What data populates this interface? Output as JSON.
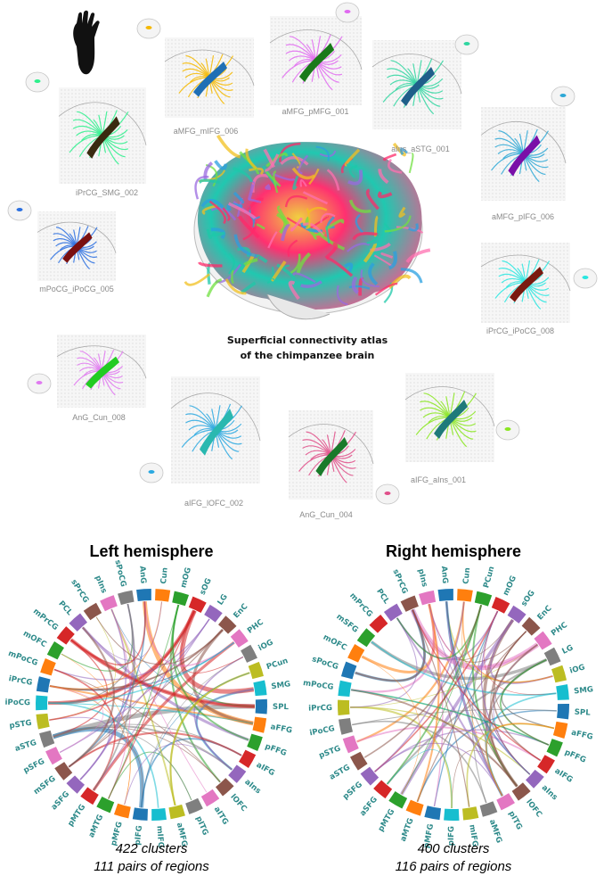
{
  "atlas_title": [
    "Superficial connectivity atlas",
    "of the chimpanzee brain"
  ],
  "bundles": [
    {
      "name": "aMFG_mIFG_006",
      "colors": [
        "#f5b800",
        "#1f6fb5"
      ]
    },
    {
      "name": "aMFG_pMFG_001",
      "colors": [
        "#e06af0",
        "#1a7a1a"
      ]
    },
    {
      "name": "aIns_aSTG_001",
      "colors": [
        "#2fd6a0",
        "#1f5f8a"
      ]
    },
    {
      "name": "iPrCG_SMG_002",
      "colors": [
        "#2df08c",
        "#3a2a10"
      ]
    },
    {
      "name": "aMFG_pIFG_006",
      "colors": [
        "#2ea8d6",
        "#7a0fa8"
      ]
    },
    {
      "name": "mPoCG_iPoCG_005",
      "colors": [
        "#2a6fe0",
        "#7a1010"
      ]
    },
    {
      "name": "iPrCG_iPoCG_008",
      "colors": [
        "#29e6e0",
        "#7a1a10"
      ]
    },
    {
      "name": "AnG_Cun_008",
      "colors": [
        "#e07af0",
        "#22cc22"
      ]
    },
    {
      "name": "aIFG_lOFC_002",
      "colors": [
        "#2aa8e0",
        "#2ab8b0"
      ]
    },
    {
      "name": "AnG_Cun_004",
      "colors": [
        "#e0508a",
        "#1a7a2a"
      ]
    },
    {
      "name": "aIFG_aIns_001",
      "colors": [
        "#8ae620",
        "#1f7a7a"
      ]
    }
  ],
  "hemispheres": [
    {
      "title": "Left hemisphere",
      "clusters": "422 clusters",
      "pairs": "111 pairs of regions",
      "regions": [
        "AnG",
        "Cun",
        "mOG",
        "sOG",
        "LG",
        "EnC",
        "PHC",
        "iOG",
        "PCun",
        "SMG",
        "SPL",
        "aFFG",
        "pFFG",
        "aIFG",
        "aIns",
        "lOFC",
        "aITG",
        "pITG",
        "aMFG",
        "mIFG",
        "pIFG",
        "pMFG",
        "aMTG",
        "pMTG",
        "aSFG",
        "mSFG",
        "pSFG",
        "aSTG",
        "pSTG",
        "iPoCG",
        "iPrCG",
        "mPoCG",
        "mOFC",
        "mPrCG",
        "PCL",
        "sPrCG",
        "pIns",
        "sPoCG"
      ]
    },
    {
      "title": "Right hemisphere",
      "clusters": "400 clusters",
      "pairs": "116 pairs of regions",
      "regions": [
        "AnG",
        "Cun",
        "PCun",
        "mOG",
        "sOG",
        "EnC",
        "PHC",
        "LG",
        "iOG",
        "SMG",
        "SPL",
        "aFFG",
        "pFFG",
        "aIFG",
        "aIns",
        "lOFC",
        "pITG",
        "aMFG",
        "mIFG",
        "pIFG",
        "pMFG",
        "aMTG",
        "pMTG",
        "aSFG",
        "pSFG",
        "aSTG",
        "pSTG",
        "iPoCG",
        "iPrCG",
        "mPoCG",
        "sPoCG",
        "mOFC",
        "mSFG",
        "mPrCG",
        "PCL",
        "sPrCG",
        "pIns"
      ]
    }
  ],
  "palette": [
    "#1f77b4",
    "#ff7f0e",
    "#2ca02c",
    "#d62728",
    "#9467bd",
    "#8c564b",
    "#e377c2",
    "#7f7f7f",
    "#bcbd22",
    "#17becf"
  ]
}
